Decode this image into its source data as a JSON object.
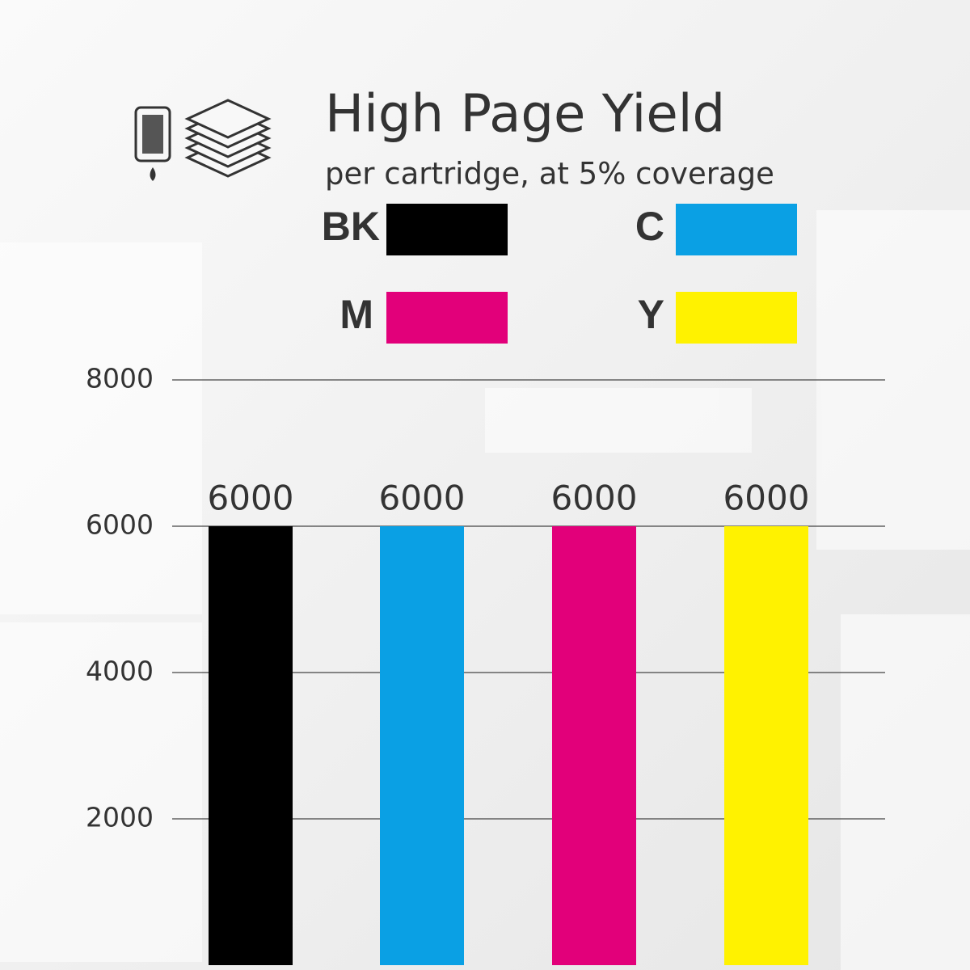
{
  "chart_data": {
    "type": "bar",
    "title": "High Page Yield",
    "subtitle": "per cartridge, at 5% coverage",
    "categories": [
      "BK",
      "C",
      "M",
      "Y"
    ],
    "values": [
      6000,
      6000,
      6000,
      6000
    ],
    "colors": [
      "#000000",
      "#0aa0e4",
      "#e2007a",
      "#fff200"
    ],
    "ylim": [
      0,
      8000
    ],
    "yticks": [
      2000,
      4000,
      6000,
      8000
    ],
    "grid": true
  }
}
